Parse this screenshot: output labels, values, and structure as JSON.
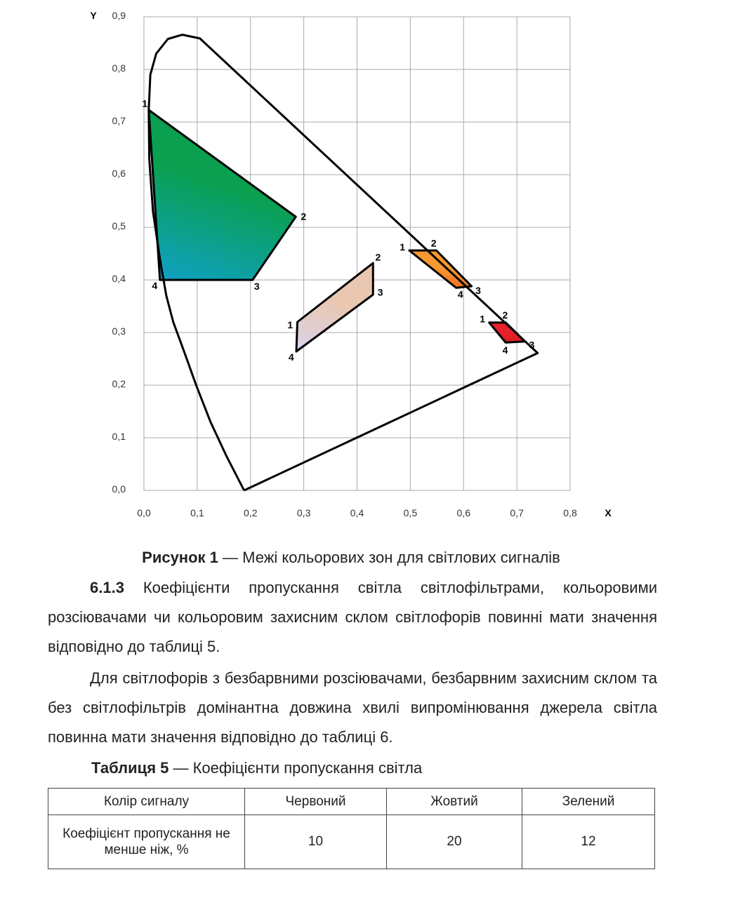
{
  "chart_data": {
    "type": "scatter",
    "xlabel": "X",
    "ylabel": "Y",
    "xlim": [
      0,
      0.8
    ],
    "ylim": [
      0,
      0.9
    ],
    "xticks": [
      "0,0",
      "0,1",
      "0,2",
      "0,3",
      "0,4",
      "0,5",
      "0,6",
      "0,7",
      "0,8"
    ],
    "yticks": [
      "0,0",
      "0,1",
      "0,2",
      "0,3",
      "0,4",
      "0,5",
      "0,6",
      "0,7",
      "0,8",
      "0,9"
    ],
    "grid": true,
    "locus": [
      [
        0.188,
        0.0
      ],
      [
        0.155,
        0.065
      ],
      [
        0.125,
        0.13
      ],
      [
        0.098,
        0.2
      ],
      [
        0.075,
        0.265
      ],
      [
        0.055,
        0.32
      ],
      [
        0.042,
        0.37
      ],
      [
        0.03,
        0.44
      ],
      [
        0.017,
        0.53
      ],
      [
        0.01,
        0.63
      ],
      [
        0.009,
        0.723
      ],
      [
        0.012,
        0.79
      ],
      [
        0.023,
        0.83
      ],
      [
        0.045,
        0.858
      ],
      [
        0.072,
        0.866
      ],
      [
        0.105,
        0.859
      ],
      [
        0.739,
        0.261
      ],
      [
        0.188,
        0.0
      ]
    ],
    "zones": [
      {
        "color": "#0aa050",
        "color2": "#10a0c8",
        "points": [
          [
            0.009,
            0.723
          ],
          [
            0.285,
            0.52
          ],
          [
            0.204,
            0.4
          ],
          [
            0.03,
            0.4
          ]
        ],
        "labels": [
          "1",
          "2",
          "3",
          "4"
        ]
      },
      {
        "color": "#e9c7b0",
        "color2": "#d8d4ee",
        "points": [
          [
            0.288,
            0.32
          ],
          [
            0.43,
            0.432
          ],
          [
            0.43,
            0.372
          ],
          [
            0.286,
            0.264
          ]
        ],
        "labels": [
          "1",
          "2",
          "3",
          "4"
        ]
      },
      {
        "color": "#f59a30",
        "color2": "#ee5a1e",
        "points": [
          [
            0.498,
            0.456
          ],
          [
            0.549,
            0.456
          ],
          [
            0.615,
            0.388
          ],
          [
            0.586,
            0.385
          ]
        ],
        "labels": [
          "1",
          "2",
          "3",
          "4"
        ]
      },
      {
        "color": "#e8222c",
        "color2": "#d81820",
        "points": [
          [
            0.648,
            0.319
          ],
          [
            0.679,
            0.319
          ],
          [
            0.715,
            0.283
          ],
          [
            0.679,
            0.281
          ]
        ],
        "labels": [
          "1",
          "2",
          "3",
          "4"
        ]
      }
    ]
  },
  "caption": {
    "bold": "Рисунок 1",
    "text": " — Межі кольорових зон для світлових сигналів"
  },
  "p1": {
    "bold": "6.1.3",
    "text": " Коефіцієнти пропускання світла світлофільтрами, кольоровими розсіювачами чи кольоровим захисним склом світлофорів повинні мати значення відповідно до таблиці 5."
  },
  "p2": {
    "text": "Для світлофорів з безбарвними розсіювачами, безбарвним захисним склом та без світлофільтрів домінантна довжина хвилі випромінювання джерела світла повинна мати значення відповідно до таблиці 6."
  },
  "table_caption": {
    "bold": "Таблиця 5",
    "text": " — Коефіцієнти пропускання світла"
  },
  "table": {
    "headers": [
      "Колір сигналу",
      "Червоний",
      "Жовтий",
      "Зелений"
    ],
    "row": [
      "Коефіцієнт пропускання не менше ніж, %",
      "10",
      "20",
      "12"
    ]
  }
}
